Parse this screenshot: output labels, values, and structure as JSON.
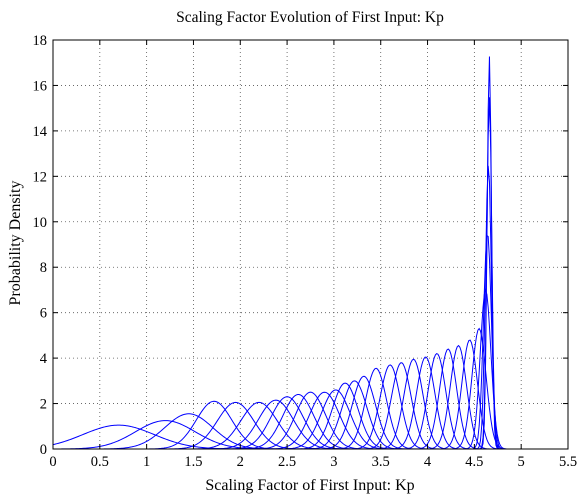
{
  "chart_data": {
    "type": "line",
    "title": "Scaling Factor Evolution of First Input: Kp",
    "xlabel": "Scaling Factor of First Input: Kp",
    "ylabel": "Probability Density",
    "xlim": [
      0,
      5.5
    ],
    "ylim": [
      0,
      18
    ],
    "xticks": [
      0,
      0.5,
      1,
      1.5,
      2,
      2.5,
      3,
      3.5,
      4,
      4.5,
      5,
      5.5
    ],
    "yticks": [
      0,
      2,
      4,
      6,
      8,
      10,
      12,
      14,
      16,
      18
    ],
    "xtick_labels": [
      "0",
      "0.5",
      "1",
      "1.5",
      "2",
      "2.5",
      "3",
      "3.5",
      "4",
      "4.5",
      "5",
      "5.5"
    ],
    "ytick_labels": [
      "0",
      "2",
      "4",
      "6",
      "8",
      "10",
      "12",
      "14",
      "16",
      "18"
    ],
    "grid": true,
    "series_color": "#0000ff",
    "series_style": "gaussian probability density curves, one per iteration",
    "series": [
      {
        "mean": 0.7,
        "peak": 1.05
      },
      {
        "mean": 1.2,
        "peak": 1.25
      },
      {
        "mean": 1.45,
        "peak": 1.55
      },
      {
        "mean": 1.72,
        "peak": 2.1
      },
      {
        "mean": 1.95,
        "peak": 2.05
      },
      {
        "mean": 2.2,
        "peak": 2.05
      },
      {
        "mean": 2.38,
        "peak": 2.15
      },
      {
        "mean": 2.5,
        "peak": 2.3
      },
      {
        "mean": 2.62,
        "peak": 2.4
      },
      {
        "mean": 2.75,
        "peak": 2.5
      },
      {
        "mean": 2.9,
        "peak": 2.5
      },
      {
        "mean": 3.02,
        "peak": 2.6
      },
      {
        "mean": 3.12,
        "peak": 2.9
      },
      {
        "mean": 3.22,
        "peak": 3.0
      },
      {
        "mean": 3.32,
        "peak": 3.2
      },
      {
        "mean": 3.45,
        "peak": 3.55
      },
      {
        "mean": 3.6,
        "peak": 3.7
      },
      {
        "mean": 3.72,
        "peak": 3.8
      },
      {
        "mean": 3.85,
        "peak": 3.95
      },
      {
        "mean": 3.98,
        "peak": 4.05
      },
      {
        "mean": 4.1,
        "peak": 4.2
      },
      {
        "mean": 4.22,
        "peak": 4.4
      },
      {
        "mean": 4.33,
        "peak": 4.55
      },
      {
        "mean": 4.45,
        "peak": 4.8
      },
      {
        "mean": 4.55,
        "peak": 5.3
      },
      {
        "mean": 4.62,
        "peak": 7.0
      },
      {
        "mean": 4.64,
        "peak": 9.5
      },
      {
        "mean": 4.65,
        "peak": 12.5
      },
      {
        "mean": 4.66,
        "peak": 15.5
      },
      {
        "mean": 4.66,
        "peak": 17.3
      }
    ]
  }
}
